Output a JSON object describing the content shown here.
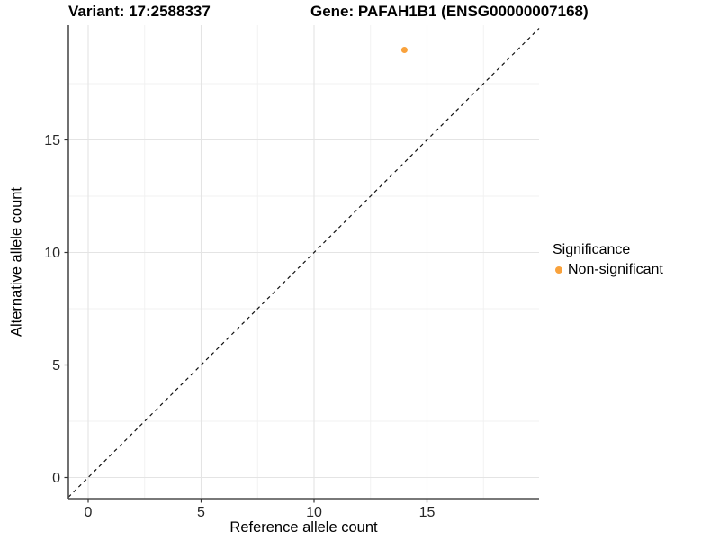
{
  "header": {
    "variant_title": "Variant: 17:2588337",
    "gene_title": "Gene: PAFAH1B1 (ENSG00000007168)"
  },
  "chart_data": {
    "type": "scatter",
    "title_left": "Variant: 17:2588337",
    "title_right": "Gene: PAFAH1B1 (ENSG00000007168)",
    "xlabel": "Reference allele count",
    "ylabel": "Alternative allele count",
    "xlim": [
      -0.9,
      19.95
    ],
    "ylim": [
      -0.95,
      20.1
    ],
    "x_ticks": [
      0,
      5,
      10,
      15
    ],
    "y_ticks": [
      0,
      5,
      10,
      15
    ],
    "x_minor_gridlines": [
      2.5,
      7.5,
      12.5,
      17.5
    ],
    "y_minor_gridlines": [
      2.5,
      7.5,
      12.5,
      17.5
    ],
    "grid": "on",
    "reference_line": {
      "equation": "y = x",
      "style": "dashed",
      "color": "#111111"
    },
    "series": [
      {
        "name": "Non-significant",
        "color": "#F9A23C",
        "points": [
          {
            "x": 14,
            "y": 19
          }
        ]
      }
    ],
    "legend": {
      "title": "Significance",
      "position": "right",
      "items": [
        {
          "label": "Non-significant",
          "color": "#F9A23C"
        }
      ]
    },
    "style": {
      "accent_orange": "#F9A23C",
      "major_grid_color": "#E4E4E4",
      "minor_grid_color": "#F1F1F1",
      "axis_line_color": "#4D4D4D",
      "tick_label_color": "#262626",
      "background": "#FFFFFF"
    }
  }
}
